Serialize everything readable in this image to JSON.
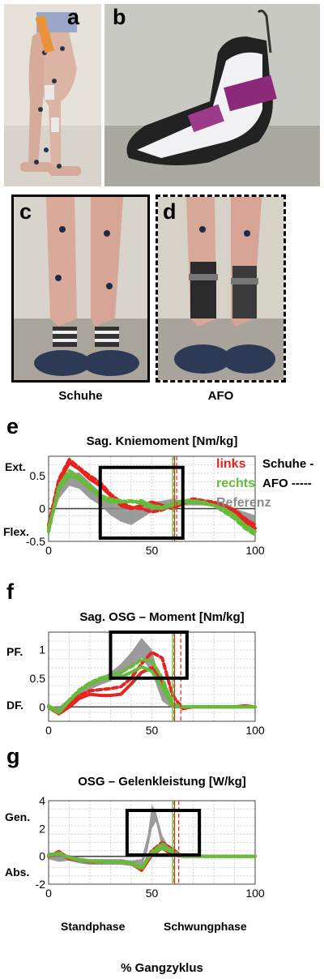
{
  "figure": {
    "panels": {
      "a": "a",
      "b": "b",
      "c": "c",
      "d": "d",
      "e": "e",
      "f": "f",
      "g": "g"
    },
    "captions": {
      "shoes": "Schuhe",
      "afo": "AFO"
    },
    "xlabel": "% Gangzyklus"
  },
  "colors": {
    "links": "#e52420",
    "rechts": "#66bb3a",
    "referenz": "#8a8a8a",
    "box": "#000000"
  },
  "chart_data": [
    {
      "type": "line",
      "id": "e",
      "title": "Sag. Kniemoment [Nm/kg]",
      "ylabel_top": "Ext.",
      "ylabel_bottom": "Flex.",
      "xlim": [
        0,
        100
      ],
      "ylim": [
        -0.5,
        0.8
      ],
      "xticks": [
        0,
        50,
        100
      ],
      "yticks": [
        0.5,
        0,
        -0.5
      ],
      "ytick_labels": [
        "0.5",
        "0",
        "-0.5"
      ],
      "legend": {
        "links": "links",
        "rechts": "rechts",
        "referenz": "Referenz",
        "shoes": "Schuhe -",
        "afo": "AFO -----"
      },
      "toe_off_lines": {
        "links_shoes": 61,
        "rechts_shoes": 60,
        "links_afo": 62,
        "rechts_afo": 60
      },
      "highlight_box": {
        "x": [
          25,
          65
        ],
        "y": [
          -0.45,
          0.63
        ]
      },
      "series": [
        {
          "name": "Referenz",
          "x": [
            0,
            5,
            10,
            15,
            20,
            25,
            30,
            35,
            40,
            45,
            50,
            55,
            60,
            65,
            70,
            75,
            80,
            85,
            90,
            95,
            100
          ],
          "lower": [
            -0.35,
            0.15,
            0.35,
            0.3,
            0.15,
            0.05,
            -0.1,
            -0.2,
            -0.25,
            -0.15,
            -0.05,
            0.0,
            0.05,
            0.05,
            0.05,
            0.05,
            0.03,
            0.0,
            -0.1,
            -0.2,
            -0.3
          ],
          "upper": [
            -0.15,
            0.35,
            0.55,
            0.55,
            0.4,
            0.25,
            0.1,
            0.05,
            0.0,
            0.05,
            0.1,
            0.12,
            0.15,
            0.12,
            0.1,
            0.1,
            0.1,
            0.08,
            0.0,
            -0.05,
            -0.1
          ]
        },
        {
          "name": "links Schuhe",
          "x": [
            0,
            5,
            10,
            15,
            20,
            25,
            30,
            35,
            40,
            45,
            50,
            55,
            60,
            65,
            70,
            75,
            80,
            85,
            90,
            95,
            100
          ],
          "y": [
            -0.3,
            0.4,
            0.7,
            0.6,
            0.45,
            0.35,
            0.2,
            0.05,
            0.0,
            0.05,
            0.1,
            0.05,
            0.0,
            0.08,
            0.12,
            0.1,
            0.08,
            0.05,
            -0.05,
            -0.2,
            -0.3
          ]
        },
        {
          "name": "links AFO",
          "x": [
            0,
            5,
            10,
            15,
            20,
            25,
            30,
            35,
            40,
            45,
            50,
            55,
            60,
            65,
            70,
            75,
            80,
            85,
            90,
            95,
            100
          ],
          "y": [
            -0.25,
            0.45,
            0.75,
            0.62,
            0.5,
            0.4,
            0.22,
            0.1,
            0.02,
            0.0,
            -0.05,
            -0.02,
            0.05,
            0.1,
            0.15,
            0.12,
            0.1,
            0.05,
            -0.02,
            -0.15,
            -0.25
          ]
        },
        {
          "name": "rechts Schuhe",
          "x": [
            0,
            5,
            10,
            15,
            20,
            25,
            30,
            35,
            40,
            45,
            50,
            55,
            60,
            65,
            70,
            75,
            80,
            85,
            90,
            95,
            100
          ],
          "y": [
            -0.3,
            0.3,
            0.5,
            0.45,
            0.3,
            0.18,
            0.1,
            0.1,
            0.12,
            0.08,
            0.02,
            0.0,
            0.05,
            0.1,
            0.1,
            0.08,
            0.05,
            0.0,
            -0.1,
            -0.25,
            -0.35
          ]
        },
        {
          "name": "rechts AFO",
          "x": [
            0,
            5,
            10,
            15,
            20,
            25,
            30,
            35,
            40,
            45,
            50,
            55,
            60,
            65,
            70,
            75,
            80,
            85,
            90,
            95,
            100
          ],
          "y": [
            -0.35,
            0.35,
            0.58,
            0.48,
            0.35,
            0.2,
            0.15,
            0.12,
            0.1,
            0.12,
            0.05,
            0.02,
            0.08,
            0.12,
            0.12,
            0.1,
            0.05,
            -0.05,
            -0.15,
            -0.3,
            -0.4
          ]
        }
      ]
    },
    {
      "type": "line",
      "id": "f",
      "title": "Sag. OSG – Moment [Nm/kg]",
      "ylabel_top": "PF.",
      "ylabel_bottom": "DF.",
      "xlim": [
        0,
        100
      ],
      "ylim": [
        -0.25,
        1.3
      ],
      "xticks": [
        0,
        50,
        100
      ],
      "yticks": [
        1,
        0.5,
        0
      ],
      "ytick_labels": [
        "1",
        "0.5",
        "0"
      ],
      "toe_off_lines": {
        "links_shoes": 61,
        "rechts_shoes": 60,
        "links_afo": 64,
        "rechts_afo": 60
      },
      "highlight_box": {
        "x": [
          30,
          67
        ],
        "y": [
          0.5,
          1.3
        ]
      },
      "series": [
        {
          "name": "Referenz",
          "x": [
            0,
            5,
            10,
            15,
            20,
            25,
            30,
            35,
            40,
            45,
            50,
            55,
            60,
            65,
            70,
            75,
            80,
            85,
            90,
            95,
            100
          ],
          "lower": [
            -0.05,
            -0.15,
            0.05,
            0.2,
            0.3,
            0.38,
            0.45,
            0.55,
            0.7,
            0.85,
            0.6,
            0.1,
            -0.03,
            -0.02,
            -0.01,
            -0.01,
            -0.01,
            -0.01,
            -0.01,
            -0.01,
            -0.02
          ],
          "upper": [
            0.02,
            0.0,
            0.15,
            0.3,
            0.42,
            0.5,
            0.6,
            0.75,
            0.95,
            1.2,
            1.0,
            0.3,
            0.05,
            0.02,
            0.01,
            0.01,
            0.01,
            0.01,
            0.01,
            0.01,
            0.02
          ]
        },
        {
          "name": "links Schuhe",
          "x": [
            0,
            5,
            10,
            15,
            20,
            25,
            30,
            35,
            40,
            45,
            50,
            55,
            60,
            65,
            70,
            75,
            80,
            85,
            90,
            95,
            100
          ],
          "y": [
            0.0,
            -0.12,
            0.0,
            0.15,
            0.22,
            0.2,
            0.2,
            0.22,
            0.4,
            0.6,
            0.68,
            0.45,
            0.05,
            -0.02,
            0.0,
            0.0,
            0.0,
            0.0,
            0.0,
            0.02,
            0.0
          ]
        },
        {
          "name": "links AFO",
          "x": [
            0,
            5,
            10,
            15,
            20,
            25,
            30,
            35,
            40,
            45,
            50,
            55,
            60,
            65,
            70,
            75,
            80,
            85,
            90,
            95,
            100
          ],
          "y": [
            0.0,
            -0.1,
            0.05,
            0.2,
            0.28,
            0.3,
            0.32,
            0.35,
            0.5,
            0.75,
            0.95,
            0.85,
            0.2,
            -0.03,
            0.0,
            0.0,
            0.0,
            0.0,
            0.0,
            0.0,
            0.0
          ]
        },
        {
          "name": "rechts Schuhe",
          "x": [
            0,
            5,
            10,
            15,
            20,
            25,
            30,
            35,
            40,
            45,
            50,
            55,
            60,
            65,
            70,
            75,
            80,
            85,
            90,
            95,
            100
          ],
          "y": [
            0.0,
            -0.1,
            0.1,
            0.28,
            0.4,
            0.48,
            0.5,
            0.52,
            0.6,
            0.7,
            0.62,
            0.35,
            0.02,
            0.0,
            0.0,
            0.0,
            0.0,
            0.0,
            0.0,
            0.0,
            0.0
          ]
        },
        {
          "name": "rechts AFO",
          "x": [
            0,
            5,
            10,
            15,
            20,
            25,
            30,
            35,
            40,
            45,
            50,
            55,
            60,
            65,
            70,
            75,
            80,
            85,
            90,
            95,
            100
          ],
          "y": [
            0.02,
            -0.08,
            0.12,
            0.3,
            0.42,
            0.5,
            0.55,
            0.6,
            0.7,
            0.82,
            0.8,
            0.5,
            0.05,
            0.0,
            0.0,
            0.0,
            0.0,
            0.0,
            0.0,
            0.0,
            0.0
          ]
        }
      ]
    },
    {
      "type": "line",
      "id": "g",
      "title": "OSG – Gelenkleistung [W/kg]",
      "ylabel_top": "Gen.",
      "ylabel_bottom": "Abs.",
      "xlim": [
        0,
        100
      ],
      "ylim": [
        -2,
        4
      ],
      "xticks": [
        0,
        50,
        100
      ],
      "yticks": [
        4,
        2,
        0,
        -2
      ],
      "ytick_labels": [
        "4",
        "2",
        "0",
        "-2"
      ],
      "phase_labels": {
        "stance": "Standphase",
        "swing": "Schwungphase"
      },
      "toe_off_lines": {
        "links_shoes": 61,
        "rechts_shoes": 60,
        "links_afo": 63,
        "rechts_afo": 60
      },
      "highlight_box": {
        "x": [
          38,
          73
        ],
        "y": [
          0.1,
          3.3
        ]
      },
      "series": [
        {
          "name": "Referenz",
          "x": [
            0,
            5,
            10,
            15,
            20,
            25,
            30,
            35,
            40,
            45,
            48,
            50,
            52,
            55,
            60,
            65,
            70,
            75,
            80,
            85,
            90,
            95,
            100
          ],
          "lower": [
            -0.2,
            -0.4,
            -0.3,
            -0.5,
            -0.6,
            -0.6,
            -0.6,
            -0.6,
            -0.7,
            -0.8,
            0.5,
            2.0,
            2.5,
            0.5,
            0.0,
            -0.05,
            -0.05,
            -0.05,
            -0.05,
            -0.05,
            -0.05,
            -0.05,
            -0.05
          ],
          "upper": [
            0.3,
            0.2,
            0.1,
            -0.1,
            -0.2,
            -0.2,
            -0.2,
            -0.2,
            -0.3,
            -0.2,
            1.5,
            3.7,
            3.2,
            1.5,
            0.2,
            0.05,
            0.05,
            0.05,
            0.05,
            0.05,
            0.05,
            0.05,
            0.05
          ]
        },
        {
          "name": "links Schuhe",
          "x": [
            0,
            5,
            10,
            15,
            20,
            25,
            30,
            35,
            40,
            45,
            50,
            55,
            60,
            65,
            70,
            75,
            80,
            85,
            90,
            95,
            100
          ],
          "y": [
            0.0,
            0.3,
            -0.2,
            -0.3,
            -0.4,
            -0.4,
            -0.4,
            -0.4,
            -0.5,
            -1.0,
            0.1,
            0.6,
            0.1,
            0.0,
            0.0,
            0.0,
            0.0,
            0.0,
            0.0,
            0.0,
            0.0
          ]
        },
        {
          "name": "links AFO",
          "x": [
            0,
            5,
            10,
            15,
            20,
            25,
            30,
            35,
            40,
            45,
            50,
            55,
            60,
            65,
            70,
            75,
            80,
            85,
            90,
            95,
            100
          ],
          "y": [
            0.0,
            0.35,
            -0.15,
            -0.3,
            -0.35,
            -0.35,
            -0.4,
            -0.4,
            -0.5,
            -0.9,
            0.4,
            1.0,
            0.5,
            0.0,
            0.0,
            0.0,
            0.0,
            0.0,
            0.0,
            0.0,
            0.0
          ]
        },
        {
          "name": "rechts Schuhe",
          "x": [
            0,
            5,
            10,
            15,
            20,
            25,
            30,
            35,
            40,
            45,
            50,
            55,
            60,
            65,
            70,
            75,
            80,
            85,
            90,
            95,
            100
          ],
          "y": [
            0.1,
            0.2,
            -0.1,
            -0.25,
            -0.35,
            -0.35,
            -0.4,
            -0.4,
            -0.45,
            -0.8,
            0.2,
            0.6,
            0.3,
            0.0,
            0.0,
            0.0,
            0.0,
            0.0,
            0.0,
            0.0,
            0.0
          ]
        },
        {
          "name": "rechts AFO",
          "x": [
            0,
            5,
            10,
            15,
            20,
            25,
            30,
            35,
            40,
            45,
            50,
            55,
            60,
            65,
            70,
            75,
            80,
            85,
            90,
            95,
            100
          ],
          "y": [
            0.05,
            0.25,
            -0.1,
            -0.3,
            -0.35,
            -0.4,
            -0.4,
            -0.45,
            -0.5,
            -0.9,
            0.3,
            0.9,
            0.4,
            0.0,
            0.0,
            0.0,
            0.0,
            0.0,
            0.0,
            0.0,
            0.0
          ]
        }
      ]
    }
  ]
}
